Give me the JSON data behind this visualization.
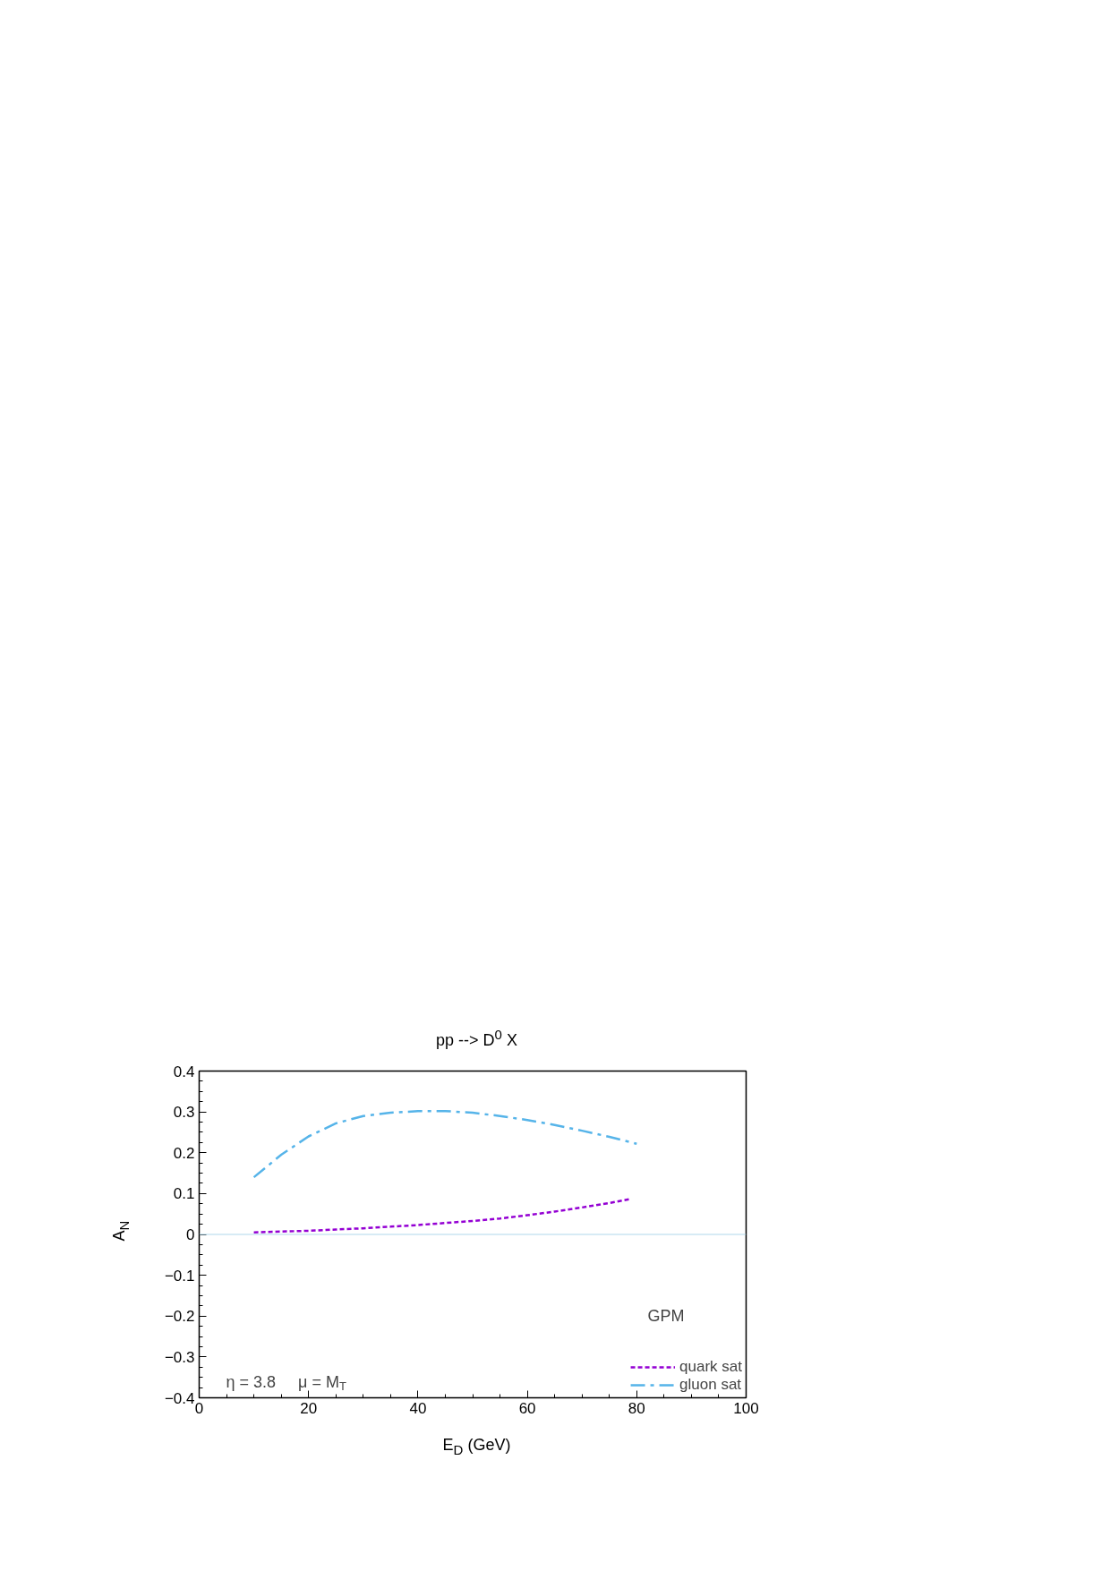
{
  "chart_data": {
    "type": "line",
    "title": "pp --> D$^{0}$ X",
    "xlabel": "E$_{D}$ (GeV)",
    "ylabel": "A$_{N}$",
    "x": [
      10,
      15,
      20,
      25,
      30,
      35,
      40,
      45,
      50,
      55,
      60,
      65,
      70,
      75,
      80
    ],
    "series": [
      {
        "name": "quark sat",
        "color": "#9400d3",
        "line_style": "dotted",
        "x": [
          10,
          15,
          20,
          25,
          30,
          35,
          40,
          45,
          50,
          55,
          60,
          65,
          70,
          75,
          79
        ],
        "values": [
          0.005,
          0.007,
          0.009,
          0.012,
          0.015,
          0.019,
          0.023,
          0.028,
          0.033,
          0.039,
          0.047,
          0.056,
          0.066,
          0.077,
          0.087
        ]
      },
      {
        "name": "gluon sat",
        "color": "#56b4e9",
        "line_style": "dashed",
        "values": [
          0.14,
          0.195,
          0.24,
          0.272,
          0.29,
          0.298,
          0.302,
          0.302,
          0.298,
          0.29,
          0.28,
          0.268,
          0.254,
          0.239,
          0.222
        ]
      }
    ],
    "xlim": [
      0,
      100
    ],
    "xticks": [
      0,
      20,
      40,
      60,
      80,
      100
    ],
    "ylim": [
      -0.4,
      0.4
    ],
    "yticks": [
      -0.4,
      -0.3,
      -0.2,
      -0.1,
      0,
      0.1,
      0.2,
      0.3,
      0.4
    ],
    "ref_lines": [
      {
        "axis": "y",
        "value": 0,
        "label": null,
        "color": "#b0d8ec"
      }
    ],
    "annotations": [
      "η = 3.8     μ = M$_{T}$",
      "GPM"
    ],
    "grid": false,
    "legend": "bottom right",
    "marker": "none"
  }
}
